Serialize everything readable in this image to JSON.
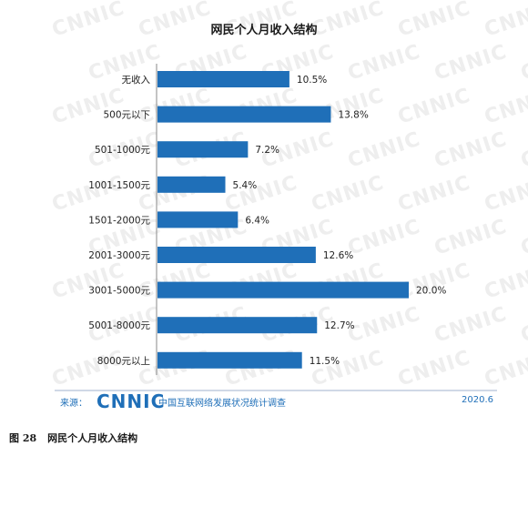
{
  "chart_data": {
    "type": "bar",
    "orientation": "horizontal",
    "title": "网民个人月收入结构",
    "categories": [
      "无收入",
      "500元以下",
      "501-1000元",
      "1001-1500元",
      "1501-2000元",
      "2001-3000元",
      "3001-5000元",
      "5001-8000元",
      "8000元以上"
    ],
    "values": [
      10.5,
      13.8,
      7.2,
      5.4,
      6.4,
      12.6,
      20.0,
      12.7,
      11.5
    ],
    "value_labels": [
      "10.5%",
      "13.8%",
      "7.2%",
      "5.4%",
      "6.4%",
      "12.6%",
      "20.0%",
      "12.7%",
      "11.5%"
    ],
    "unit": "%",
    "xlim": [
      0,
      20
    ],
    "bar_color": "#1f6fb8",
    "grid": false,
    "legend": "none",
    "watermark": "CNNIC"
  },
  "footer": {
    "source_label": "来源：",
    "logo_text": "CNNIC",
    "report_name": "中国互联网络发展状况统计调查",
    "date": "2020.6"
  },
  "caption": {
    "number": "图 28",
    "text": "网民个人月收入结构"
  },
  "colors": {
    "accent": "#1f6fb8",
    "footer_line": "#cfd8e6",
    "watermark": "#eeeeee"
  }
}
